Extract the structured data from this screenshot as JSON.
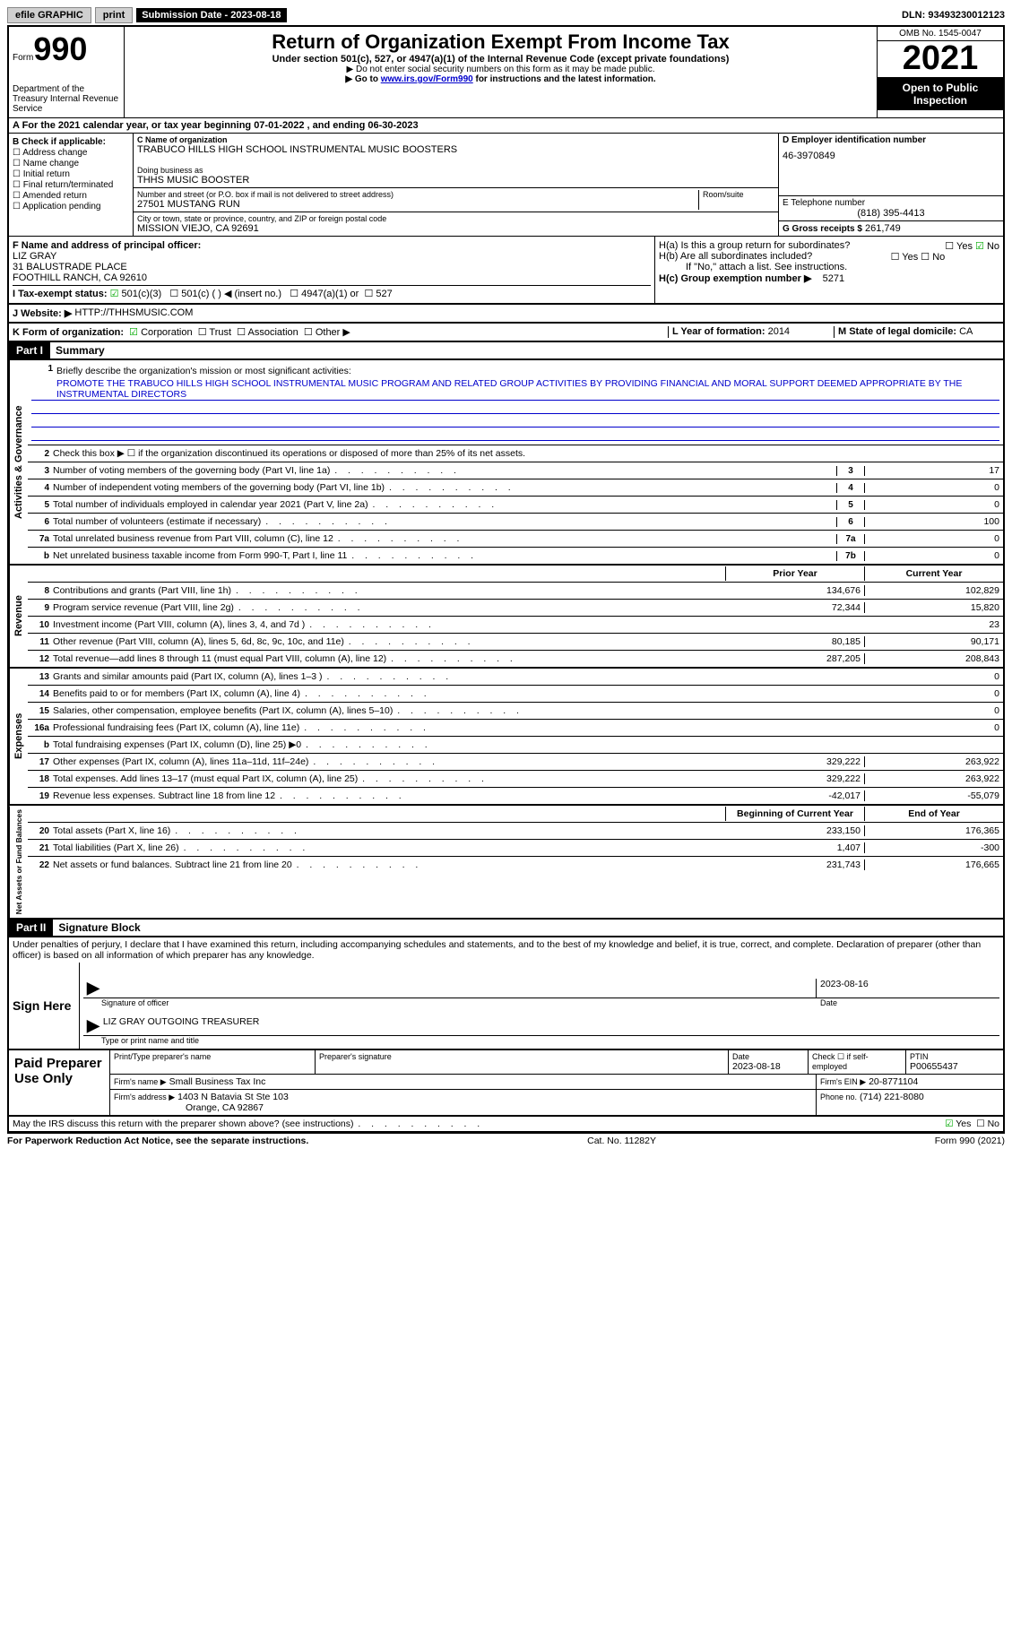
{
  "topbar": {
    "efile": "efile GRAPHIC",
    "print": "print",
    "subdate_label": "Submission Date - 2023-08-18",
    "dln": "DLN: 93493230012123"
  },
  "header": {
    "form_label": "Form",
    "form_num": "990",
    "dept": "Department of the Treasury Internal Revenue Service",
    "title": "Return of Organization Exempt From Income Tax",
    "sub": "Under section 501(c), 527, or 4947(a)(1) of the Internal Revenue Code (except private foundations)",
    "note1": "▶ Do not enter social security numbers on this form as it may be made public.",
    "note2_pre": "▶ Go to ",
    "note2_link": "www.irs.gov/Form990",
    "note2_post": " for instructions and the latest information.",
    "omb": "OMB No. 1545-0047",
    "year": "2021",
    "open": "Open to Public Inspection"
  },
  "row_a": "A For the 2021 calendar year, or tax year beginning 07-01-2022    , and ending 06-30-2023",
  "col_b": {
    "label": "B Check if applicable:",
    "items": [
      "Address change",
      "Name change",
      "Initial return",
      "Final return/terminated",
      "Amended return",
      "Application pending"
    ]
  },
  "col_c": {
    "name_label": "C Name of organization",
    "name": "TRABUCO HILLS HIGH SCHOOL INSTRUMENTAL MUSIC BOOSTERS",
    "dba_label": "Doing business as",
    "dba": "THHS MUSIC BOOSTER",
    "street_label": "Number and street (or P.O. box if mail is not delivered to street address)",
    "street": "27501 MUSTANG RUN",
    "room_label": "Room/suite",
    "city_label": "City or town, state or province, country, and ZIP or foreign postal code",
    "city": "MISSION VIEJO, CA  92691"
  },
  "col_d": {
    "ein_label": "D Employer identification number",
    "ein": "46-3970849",
    "phone_label": "E Telephone number",
    "phone": "(818) 395-4413",
    "gross_label": "G Gross receipts $",
    "gross": "261,749"
  },
  "sec_f": {
    "label": "F  Name and address of principal officer:",
    "name": "LIZ GRAY",
    "addr1": "31 BALUSTRADE PLACE",
    "addr2": "FOOTHILL RANCH, CA  92610"
  },
  "sec_h": {
    "ha": "H(a)  Is this a group return for subordinates?",
    "hb": "H(b)  Are all subordinates included?",
    "hb_note": "If \"No,\" attach a list. See instructions.",
    "hc": "H(c)  Group exemption number ▶",
    "hc_val": "5271",
    "yes": "Yes",
    "no": "No"
  },
  "sec_i": {
    "label": "I  Tax-exempt status:",
    "opt1": "501(c)(3)",
    "opt2": "501(c) (   ) ◀ (insert no.)",
    "opt3": "4947(a)(1) or",
    "opt4": "527"
  },
  "sec_j": {
    "label": "J  Website: ▶",
    "val": "HTTP://THHSMUSIC.COM"
  },
  "sec_k": {
    "label": "K Form of organization:",
    "corp": "Corporation",
    "trust": "Trust",
    "assoc": "Association",
    "other": "Other ▶",
    "l_label": "L Year of formation:",
    "l_val": "2014",
    "m_label": "M State of legal domicile:",
    "m_val": "CA"
  },
  "part1": {
    "label": "Part I",
    "title": "Summary"
  },
  "summary": {
    "side1": "Activities & Governance",
    "side2": "Revenue",
    "side3": "Expenses",
    "side4": "Net Assets or Fund Balances",
    "l1_label": "Briefly describe the organization's mission or most significant activities:",
    "l1_text": "PROMOTE THE TRABUCO HILLS HIGH SCHOOL INSTRUMENTAL MUSIC PROGRAM AND RELATED GROUP ACTIVITIES BY PROVIDING FINANCIAL AND MORAL SUPPORT DEEMED APPROPRIATE BY THE INSTRUMENTAL DIRECTORS",
    "l2": "Check this box ▶ ☐ if the organization discontinued its operations or disposed of more than 25% of its net assets.",
    "lines_gov": [
      {
        "n": "3",
        "t": "Number of voting members of the governing body (Part VI, line 1a)",
        "box": "3",
        "v": "17"
      },
      {
        "n": "4",
        "t": "Number of independent voting members of the governing body (Part VI, line 1b)",
        "box": "4",
        "v": "0"
      },
      {
        "n": "5",
        "t": "Total number of individuals employed in calendar year 2021 (Part V, line 2a)",
        "box": "5",
        "v": "0"
      },
      {
        "n": "6",
        "t": "Total number of volunteers (estimate if necessary)",
        "box": "6",
        "v": "100"
      },
      {
        "n": "7a",
        "t": "Total unrelated business revenue from Part VIII, column (C), line 12",
        "box": "7a",
        "v": "0"
      },
      {
        "n": "b",
        "t": "Net unrelated business taxable income from Form 990-T, Part I, line 11",
        "box": "7b",
        "v": "0"
      }
    ],
    "hdr_prior": "Prior Year",
    "hdr_current": "Current Year",
    "lines_rev": [
      {
        "n": "8",
        "t": "Contributions and grants (Part VIII, line 1h)",
        "p": "134,676",
        "c": "102,829"
      },
      {
        "n": "9",
        "t": "Program service revenue (Part VIII, line 2g)",
        "p": "72,344",
        "c": "15,820"
      },
      {
        "n": "10",
        "t": "Investment income (Part VIII, column (A), lines 3, 4, and 7d )",
        "p": "",
        "c": "23"
      },
      {
        "n": "11",
        "t": "Other revenue (Part VIII, column (A), lines 5, 6d, 8c, 9c, 10c, and 11e)",
        "p": "80,185",
        "c": "90,171"
      },
      {
        "n": "12",
        "t": "Total revenue—add lines 8 through 11 (must equal Part VIII, column (A), line 12)",
        "p": "287,205",
        "c": "208,843"
      }
    ],
    "lines_exp": [
      {
        "n": "13",
        "t": "Grants and similar amounts paid (Part IX, column (A), lines 1–3 )",
        "p": "",
        "c": "0"
      },
      {
        "n": "14",
        "t": "Benefits paid to or for members (Part IX, column (A), line 4)",
        "p": "",
        "c": "0"
      },
      {
        "n": "15",
        "t": "Salaries, other compensation, employee benefits (Part IX, column (A), lines 5–10)",
        "p": "",
        "c": "0"
      },
      {
        "n": "16a",
        "t": "Professional fundraising fees (Part IX, column (A), line 11e)",
        "p": "",
        "c": "0"
      },
      {
        "n": "b",
        "t": "Total fundraising expenses (Part IX, column (D), line 25) ▶0",
        "p": "grey",
        "c": "grey"
      },
      {
        "n": "17",
        "t": "Other expenses (Part IX, column (A), lines 11a–11d, 11f–24e)",
        "p": "329,222",
        "c": "263,922"
      },
      {
        "n": "18",
        "t": "Total expenses. Add lines 13–17 (must equal Part IX, column (A), line 25)",
        "p": "329,222",
        "c": "263,922"
      },
      {
        "n": "19",
        "t": "Revenue less expenses. Subtract line 18 from line 12",
        "p": "-42,017",
        "c": "-55,079"
      }
    ],
    "hdr_begin": "Beginning of Current Year",
    "hdr_end": "End of Year",
    "lines_net": [
      {
        "n": "20",
        "t": "Total assets (Part X, line 16)",
        "p": "233,150",
        "c": "176,365"
      },
      {
        "n": "21",
        "t": "Total liabilities (Part X, line 26)",
        "p": "1,407",
        "c": "-300"
      },
      {
        "n": "22",
        "t": "Net assets or fund balances. Subtract line 21 from line 20",
        "p": "231,743",
        "c": "176,665"
      }
    ]
  },
  "part2": {
    "label": "Part II",
    "title": "Signature Block",
    "decl": "Under penalties of perjury, I declare that I have examined this return, including accompanying schedules and statements, and to the best of my knowledge and belief, it is true, correct, and complete. Declaration of preparer (other than officer) is based on all information of which preparer has any knowledge."
  },
  "sign": {
    "left": "Sign Here",
    "sig_officer": "Signature of officer",
    "date": "Date",
    "date_val": "2023-08-16",
    "name_title": "LIZ GRAY OUTGOING TREASURER",
    "name_label": "Type or print name and title"
  },
  "prep": {
    "left": "Paid Preparer Use Only",
    "h1": "Print/Type preparer's name",
    "h2": "Preparer's signature",
    "h3": "Date",
    "h3v": "2023-08-18",
    "h4": "Check ☐ if self-employed",
    "h5": "PTIN",
    "h5v": "P00655437",
    "firm_label": "Firm's name    ▶",
    "firm": "Small Business Tax Inc",
    "ein_label": "Firm's EIN ▶",
    "ein": "20-8771104",
    "addr_label": "Firm's address ▶",
    "addr1": "1403 N Batavia St Ste 103",
    "addr2": "Orange, CA  92867",
    "phone_label": "Phone no.",
    "phone": "(714) 221-8080"
  },
  "discuss": {
    "text": "May the IRS discuss this return with the preparer shown above? (see instructions)",
    "yes": "Yes",
    "no": "No"
  },
  "footer": {
    "left": "For Paperwork Reduction Act Notice, see the separate instructions.",
    "mid": "Cat. No. 11282Y",
    "right": "Form 990 (2021)"
  }
}
